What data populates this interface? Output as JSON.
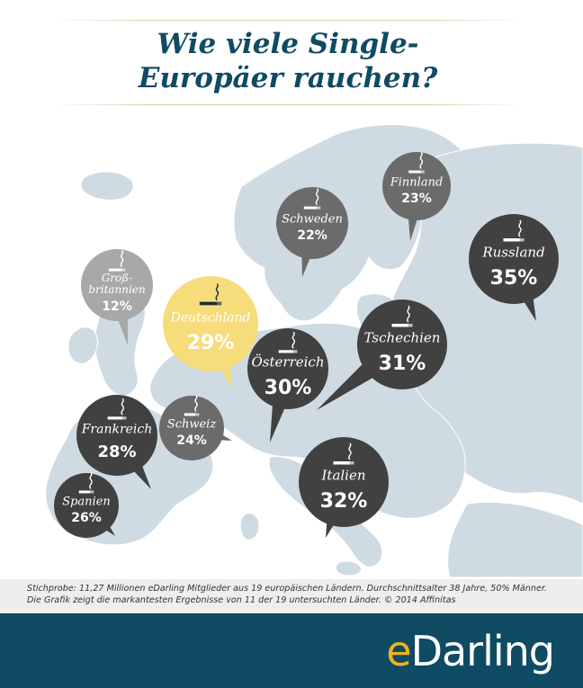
{
  "title": {
    "line1": "Wie viele Single-",
    "line2": "Europäer rauchen?"
  },
  "chart_data": {
    "type": "bar",
    "unit": "%",
    "categories": [
      "Groß- britannien",
      "Deutschland",
      "Schweden",
      "Finnland",
      "Russland",
      "Österreich",
      "Tschechien",
      "Frankreich",
      "Schweiz",
      "Spanien",
      "Italien"
    ],
    "values": [
      12,
      29,
      22,
      23,
      35,
      30,
      31,
      28,
      24,
      26,
      32
    ],
    "value_labels": [
      "12%",
      "29%",
      "22%",
      "23%",
      "35%",
      "30%",
      "31%",
      "28%",
      "24%",
      "26%",
      "32%"
    ],
    "highlighted": "Deutschland",
    "colors": {
      "light": "#a8a8a8",
      "medium": "#6b6b6b",
      "dark": "#414141",
      "highlight": "#f6dc7a",
      "highlight_text": "#1d2b3a",
      "map": "#cfdbe3",
      "sea": "#ffffff"
    },
    "icon": "cigarette-icon"
  },
  "footnote": "Stichprobe: 11,27 Millionen eDarling Mitglieder aus 19 europäischen Ländern. Durchschnittsalter 38 Jahre, 50% Männer. Die Grafik zeigt die markantesten Ergebnisse von 11 der 19 untersuchten Länder. © 2014 Affinitas",
  "brand": {
    "logo_e": "e",
    "logo_rest": "Darling",
    "accent": "#f2b21c",
    "band": "#0f4b63"
  }
}
